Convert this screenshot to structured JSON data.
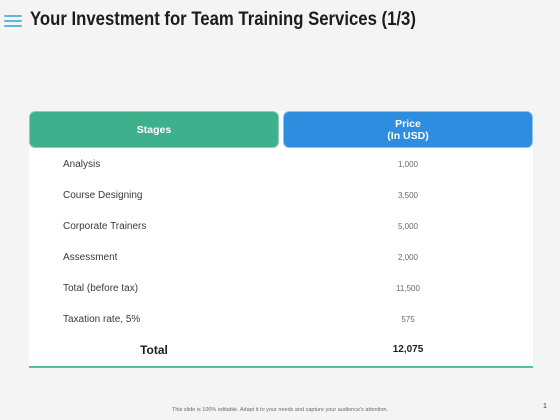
{
  "title": "Your Investment for Team Training Services (1/3)",
  "table": {
    "header_stages": "Stages",
    "header_price_line1": "Price",
    "header_price_line2": "(In USD)",
    "rows": [
      {
        "stage": "Analysis",
        "price": "1,000"
      },
      {
        "stage": "Course Designing",
        "price": "3,500"
      },
      {
        "stage": "Corporate Trainers",
        "price": "5,000"
      },
      {
        "stage": "Assessment",
        "price": "2,000"
      },
      {
        "stage": "Total (before tax)",
        "price": "11,500"
      },
      {
        "stage": "Taxation rate, 5%",
        "price": "575"
      }
    ],
    "total_label": "Total",
    "total_value": "12,075"
  },
  "footer": "This slide is 100% editable. Adapt it to your needs and capture your audience's attention.",
  "page_number": "1",
  "colors": {
    "stages_header": "#3eb08c",
    "price_header": "#2f8de0",
    "accent_line": "#55bfa8",
    "menu_icon": "#5fb8d8"
  }
}
